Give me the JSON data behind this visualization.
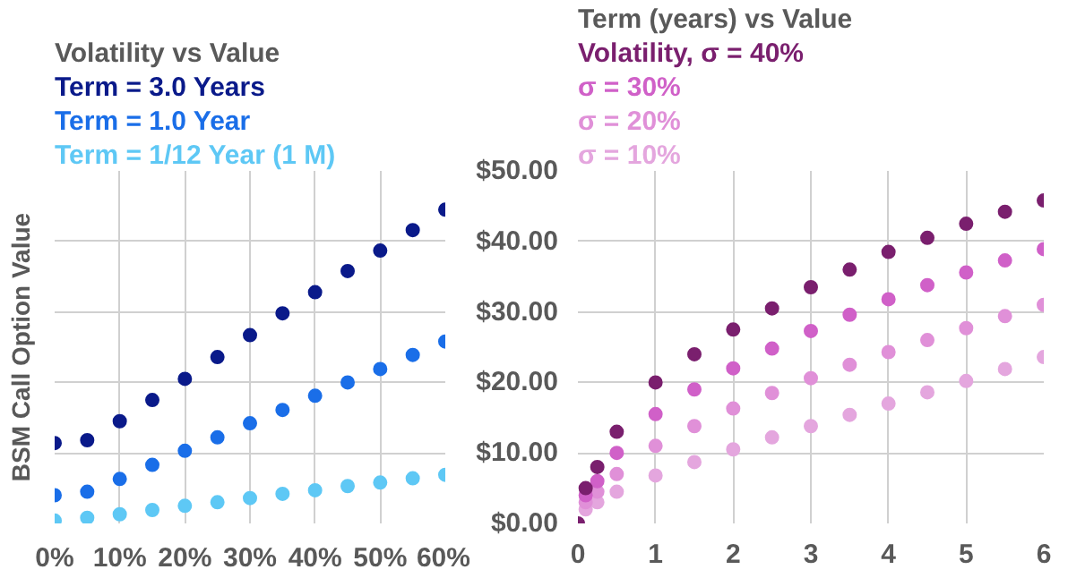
{
  "chart_data": [
    {
      "type": "scatter",
      "title": "Volatility vs Value",
      "ylabel": "BSM Call Option Value",
      "marker": "circle",
      "grid": true,
      "legend": "top left",
      "tick_labels": "x",
      "x": [
        0,
        5,
        10,
        15,
        20,
        25,
        30,
        35,
        40,
        45,
        50,
        55,
        60
      ],
      "xlim": [
        0,
        60
      ],
      "xticks": [
        {
          "value": 0,
          "label": "0%"
        },
        {
          "value": 10,
          "label": "10%"
        },
        {
          "value": 20,
          "label": "20%"
        },
        {
          "value": 30,
          "label": "30%"
        },
        {
          "value": 40,
          "label": "40%"
        },
        {
          "value": 50,
          "label": "50%"
        },
        {
          "value": 60,
          "label": "60%"
        }
      ],
      "ylim": [
        0,
        50
      ],
      "yticks": [
        0,
        10,
        20,
        30,
        40,
        50
      ],
      "series": [
        {
          "name": "Term = 3.0 Years",
          "color": "#0a1a8a",
          "values": [
            11.4,
            11.8,
            14.5,
            17.5,
            20.5,
            23.6,
            26.7,
            29.8,
            32.8,
            35.8,
            38.7,
            41.6,
            44.5
          ]
        },
        {
          "name": "Term = 1.0 Year",
          "color": "#1a6ee8",
          "values": [
            4.0,
            4.5,
            6.3,
            8.3,
            10.3,
            12.2,
            14.2,
            16.1,
            18.1,
            20.0,
            21.9,
            23.9,
            25.8
          ]
        },
        {
          "name": "Term = 1/12 Year (1 M)",
          "color": "#5ec8f5",
          "values": [
            0.4,
            0.8,
            1.3,
            1.9,
            2.5,
            3.0,
            3.6,
            4.2,
            4.7,
            5.3,
            5.8,
            6.4,
            6.9
          ]
        }
      ]
    },
    {
      "type": "scatter",
      "title": "Term (years) vs Value",
      "marker": "circle",
      "grid": true,
      "legend": "top left",
      "x": [
        0,
        0.1,
        0.25,
        0.5,
        1,
        1.5,
        2,
        2.5,
        3,
        3.5,
        4,
        4.5,
        5,
        5.5,
        6
      ],
      "xlim": [
        0,
        6
      ],
      "xticks": [
        0,
        1,
        2,
        3,
        4,
        5,
        6
      ],
      "ylim": [
        0,
        50
      ],
      "yticks": [
        {
          "value": 0,
          "label": "$0.00"
        },
        {
          "value": 10,
          "label": "$10.00"
        },
        {
          "value": 20,
          "label": "$20.00"
        },
        {
          "value": 30,
          "label": "$30.00"
        },
        {
          "value": 40,
          "label": "$40.00"
        },
        {
          "value": 50,
          "label": "$50.00"
        }
      ],
      "series": [
        {
          "name": "Volatility, σ = 40%",
          "color": "#7a1f6e",
          "values": [
            0,
            5,
            8,
            13,
            20,
            24,
            27.5,
            30.5,
            33.5,
            36,
            38.5,
            40.5,
            42.5,
            44.2,
            45.8
          ]
        },
        {
          "name": "σ = 30%",
          "color": "#d060c8",
          "x": [
            0.1,
            0.25,
            0.5,
            1,
            1.5,
            2,
            2.5,
            3,
            3.5,
            4,
            4.5,
            5,
            5.5,
            6
          ],
          "values": [
            4,
            6,
            10,
            15.5,
            19,
            22,
            24.8,
            27.3,
            29.6,
            31.8,
            33.8,
            35.6,
            37.3,
            38.9
          ]
        },
        {
          "name": "σ = 20%",
          "color": "#e090d8",
          "x": [
            0.1,
            0.25,
            0.5,
            1,
            1.5,
            2,
            2.5,
            3,
            3.5,
            4,
            4.5,
            5,
            5.5,
            6
          ],
          "values": [
            3,
            4.5,
            7,
            11,
            13.8,
            16.3,
            18.5,
            20.6,
            22.5,
            24.3,
            26,
            27.7,
            29.4,
            31
          ]
        },
        {
          "name": "σ = 10%",
          "color": "#e4a6de",
          "x": [
            0.1,
            0.25,
            0.5,
            1,
            1.5,
            2,
            2.5,
            3,
            3.5,
            4,
            4.5,
            5,
            5.5,
            6
          ],
          "values": [
            2,
            3,
            4.5,
            6.8,
            8.7,
            10.5,
            12.2,
            13.8,
            15.4,
            17,
            18.6,
            20.2,
            21.9,
            23.6
          ]
        }
      ]
    }
  ]
}
